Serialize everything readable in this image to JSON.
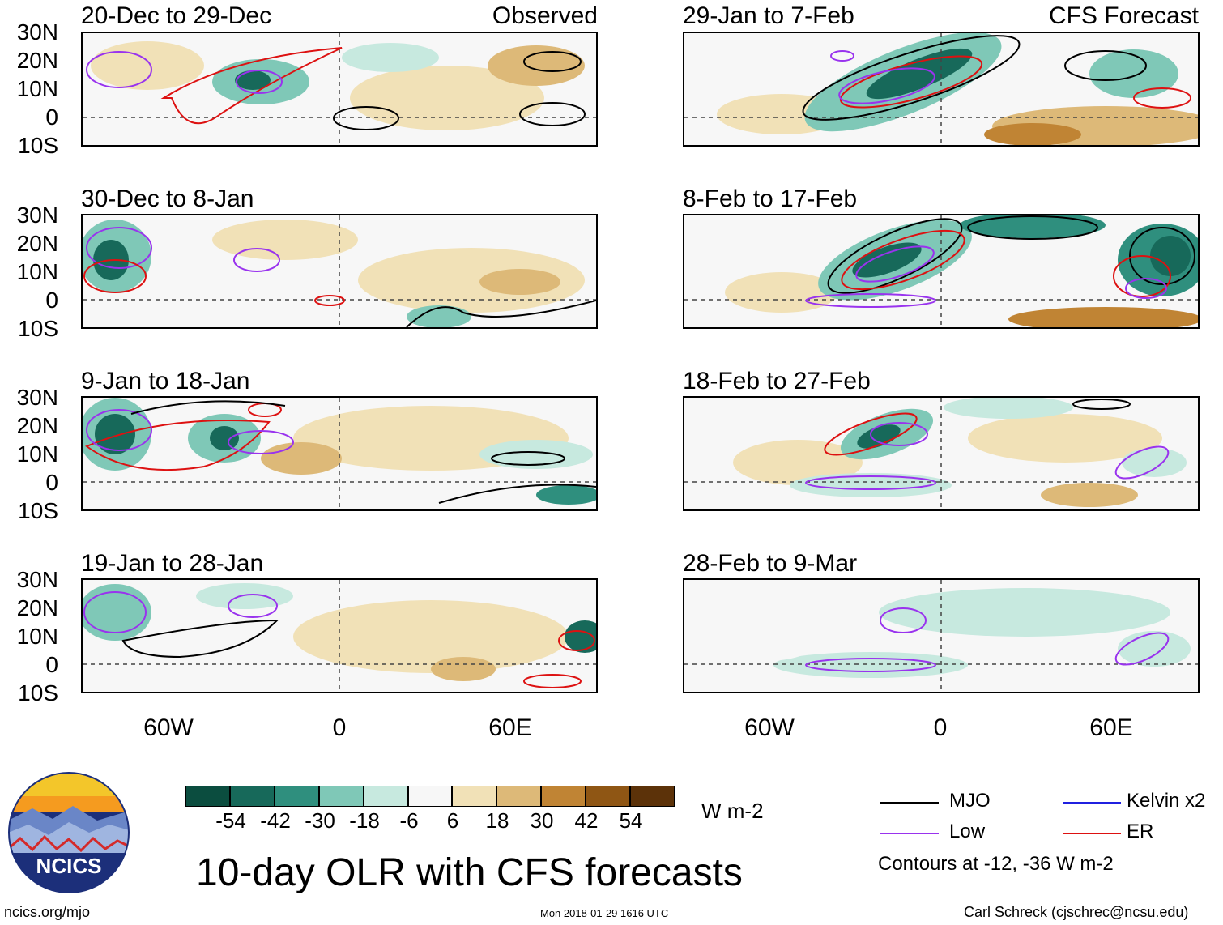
{
  "mode_labels": {
    "observed": "Observed",
    "forecast": "CFS Forecast"
  },
  "panels_observed": [
    {
      "title": "20-Dec to 29-Dec"
    },
    {
      "title": "30-Dec to 8-Jan"
    },
    {
      "title": "9-Jan to 18-Jan"
    },
    {
      "title": "19-Jan to 28-Jan"
    }
  ],
  "panels_forecast": [
    {
      "title": "29-Jan to 7-Feb"
    },
    {
      "title": "8-Feb to 17-Feb"
    },
    {
      "title": "18-Feb to 27-Feb"
    },
    {
      "title": "28-Feb to 9-Mar"
    }
  ],
  "lat_labels": [
    "30N",
    "20N",
    "10N",
    "0",
    "10S"
  ],
  "lon_labels": [
    "60W",
    "0",
    "60E"
  ],
  "colorbar": {
    "colors": [
      "#0b4d3f",
      "#17695a",
      "#2f8f7e",
      "#7fc8b7",
      "#c7e9df",
      "#f7f7f7",
      "#f1e1b7",
      "#ddb978",
      "#c08434",
      "#8f5614",
      "#5c3209"
    ],
    "ticks": [
      "-54",
      "-42",
      "-30",
      "-18",
      "-6",
      "6",
      "18",
      "30",
      "42",
      "54"
    ],
    "units": "W m-2"
  },
  "title": "10-day OLR with CFS forecasts",
  "legend": {
    "items": [
      {
        "label": "MJO",
        "color": "#000000"
      },
      {
        "label": "Kelvin x2",
        "color": "#2020e0"
      },
      {
        "label": "Low",
        "color": "#9933ee"
      },
      {
        "label": "ER",
        "color": "#dd1111"
      }
    ],
    "note": "Contours at -12, -36 W m-2"
  },
  "footer": {
    "site": "ncics.org/mjo",
    "timestamp": "Mon 2018-01-29 1616 UTC",
    "author": "Carl Schreck (cjschrec@ncsu.edu)"
  },
  "logo": {
    "text": "NCICS"
  }
}
